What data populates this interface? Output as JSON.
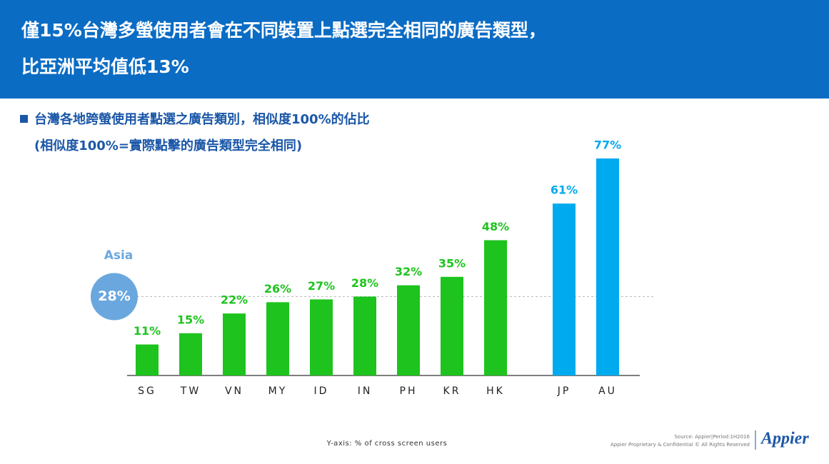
{
  "header": {
    "title_lines": [
      "僅15%台灣多螢使用者會在不同裝置上點選完全相同的廣告類型，",
      "比亞洲平均值低13%"
    ]
  },
  "chart_data": {
    "type": "bar",
    "title": "台灣各地跨螢使用者點選之廣告類別，相似度100%的佔比",
    "subtitle": "(相似度100%=實際點擊的廣告類型完全相同)",
    "categories": [
      "SG",
      "TW",
      "VN",
      "MY",
      "ID",
      "IN",
      "PH",
      "KR",
      "HK",
      "JP",
      "AU"
    ],
    "values": [
      11,
      15,
      22,
      26,
      27,
      28,
      32,
      35,
      48,
      61,
      77
    ],
    "value_labels": [
      "11%",
      "15%",
      "22%",
      "26%",
      "27%",
      "28%",
      "32%",
      "35%",
      "48%",
      "61%",
      "77%"
    ],
    "colors": [
      "#1ec31e",
      "#1ec31e",
      "#1ec31e",
      "#1ec31e",
      "#1ec31e",
      "#1ec31e",
      "#1ec31e",
      "#1ec31e",
      "#1ec31e",
      "#00aaee",
      "#00aaee"
    ],
    "ylim": [
      0,
      77
    ],
    "reference": {
      "label": "Asia",
      "value": 28,
      "value_label": "28%"
    },
    "y_axis_note": "Y-axis: % of cross screen users"
  },
  "footer": {
    "source": "Source: Appier|Period:1H2016",
    "legal": "Appier Proprietary & Confidential © All Rights Reserved",
    "logo": "Appier"
  }
}
